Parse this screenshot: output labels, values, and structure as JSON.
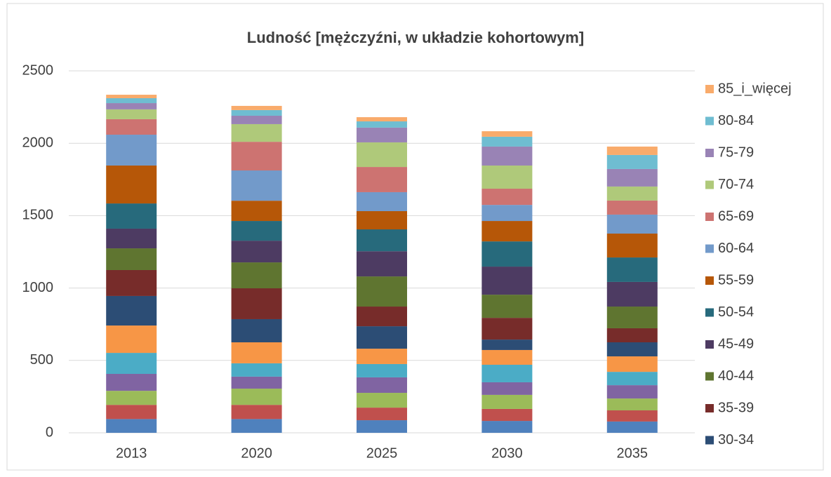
{
  "chart_data": {
    "type": "stacked_bar",
    "title": "Ludność [mężczyźni, w układzie kohortowym]",
    "categories": [
      "2013",
      "2020",
      "2025",
      "2030",
      "2035"
    ],
    "ylim": [
      0,
      2500
    ],
    "yticks": [
      0,
      500,
      1000,
      1500,
      2000,
      2500
    ],
    "grid": true,
    "legend": "right",
    "series": [
      {
        "name": null,
        "color": "#4f81bd",
        "values": [
          95,
          95,
          87,
          82,
          78
        ]
      },
      {
        "name": null,
        "color": "#c0504d",
        "values": [
          98,
          98,
          87,
          83,
          77
        ]
      },
      {
        "name": null,
        "color": "#9bbb59",
        "values": [
          97,
          112,
          102,
          97,
          82
        ]
      },
      {
        "name": null,
        "color": "#8064a2",
        "values": [
          117,
          83,
          107,
          87,
          92
        ]
      },
      {
        "name": null,
        "color": "#4bacc6",
        "values": [
          145,
          92,
          92,
          121,
          92
        ]
      },
      {
        "name": null,
        "color": "#f79646",
        "values": [
          189,
          145,
          106,
          102,
          107
        ]
      },
      {
        "name": "30-34",
        "color": "#2c4d75",
        "values": [
          204,
          160,
          155,
          72,
          97
        ]
      },
      {
        "name": "35-39",
        "color": "#772c2a",
        "values": [
          179,
          213,
          136,
          150,
          97
        ]
      },
      {
        "name": "40-44",
        "color": "#5f7530",
        "values": [
          150,
          179,
          208,
          160,
          150
        ]
      },
      {
        "name": "45-49",
        "color": "#4d3b62",
        "values": [
          136,
          150,
          174,
          194,
          170
        ]
      },
      {
        "name": "50-54",
        "color": "#276a7c",
        "values": [
          174,
          136,
          151,
          174,
          169
        ]
      },
      {
        "name": "55-59",
        "color": "#b65708",
        "values": [
          262,
          140,
          126,
          141,
          165
        ]
      },
      {
        "name": "60-64",
        "color": "#729aca",
        "values": [
          213,
          209,
          131,
          111,
          131
        ]
      },
      {
        "name": "65-69",
        "color": "#cd7371",
        "values": [
          107,
          198,
          174,
          112,
          97
        ]
      },
      {
        "name": "70-74",
        "color": "#afc97a",
        "values": [
          68,
          122,
          170,
          160,
          97
        ]
      },
      {
        "name": "75-79",
        "color": "#9983b5",
        "values": [
          43,
          58,
          102,
          131,
          121
        ]
      },
      {
        "name": "80-84",
        "color": "#6fbdd1",
        "values": [
          34,
          39,
          43,
          68,
          97
        ]
      },
      {
        "name": "85_i_więcej",
        "color": "#f9ab6b",
        "values": [
          24,
          29,
          29,
          38,
          58
        ]
      }
    ]
  }
}
